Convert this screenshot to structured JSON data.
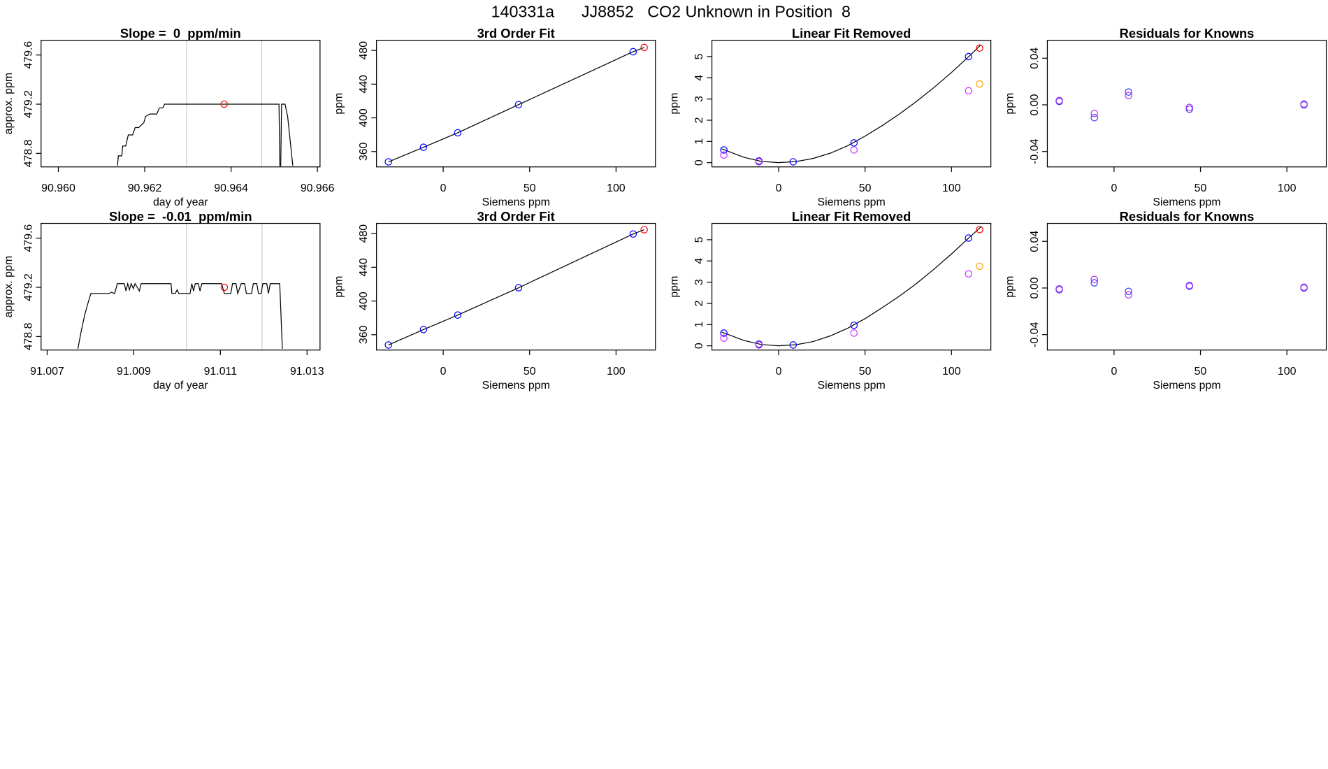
{
  "title": "140331a      JJ8852   CO2 Unknown in Position  8",
  "chart_data": [
    {
      "type": "line",
      "title": "Slope =  0  ppm/min",
      "xlabel": "day of year",
      "ylabel": "approx. ppm",
      "xlim": [
        90.9596,
        90.96606
      ],
      "ylim": [
        478.69,
        479.72
      ],
      "xticks": [
        {
          "value": 90.96,
          "label": "90.960"
        },
        90.962,
        90.964,
        90.966
      ],
      "yticks": [
        478.8,
        479.2,
        479.6
      ],
      "vlines": [
        90.96297,
        90.96471
      ],
      "vline_color": "#cccccc",
      "series": [
        {
          "mode": "line",
          "color": "#000000",
          "x": [
            90.96137,
            90.96139,
            90.96147,
            90.96149,
            90.96156,
            90.9616,
            90.96162,
            90.96172,
            90.96178,
            90.96186,
            90.96198,
            90.96202,
            90.96212,
            90.96228,
            90.96234,
            90.96242,
            90.96246,
            90.96511,
            90.96513,
            90.96515,
            90.96517,
            90.96525,
            90.96531,
            90.96537,
            90.96543
          ],
          "values": [
            478.7,
            478.78,
            478.78,
            478.86,
            478.86,
            478.92,
            478.95,
            478.95,
            479.01,
            479.01,
            479.05,
            479.1,
            479.12,
            479.12,
            479.17,
            479.17,
            479.2,
            479.2,
            478.7,
            478.7,
            479.2,
            479.2,
            479.1,
            478.9,
            478.7
          ]
        },
        {
          "mode": "points",
          "color": "#ff0000",
          "x": [
            90.96384
          ],
          "values": [
            479.2
          ]
        }
      ]
    },
    {
      "type": "scatter",
      "title": "3rd Order Fit",
      "xlabel": "Siemens ppm",
      "ylabel": "ppm",
      "xlim": [
        -38.6,
        122.8
      ],
      "ylim": [
        341.8,
        492.1
      ],
      "xticks": [
        0,
        50,
        100
      ],
      "yticks": [
        360,
        400,
        440,
        480
      ],
      "series": [
        {
          "mode": "line",
          "color": "#000000",
          "x": [
            -31.7,
            -11.4,
            8.4,
            43.6,
            109.9,
            116.3
          ],
          "values": [
            347.8,
            365.1,
            382.3,
            415.7,
            478.5,
            483.5
          ]
        },
        {
          "mode": "points",
          "color": "#0000ff",
          "x": [
            -31.7,
            -11.4,
            8.4,
            43.6,
            109.9
          ],
          "values": [
            347.8,
            365.1,
            382.3,
            415.7,
            478.5
          ]
        },
        {
          "mode": "points",
          "color": "#ff0000",
          "x": [
            116.3
          ],
          "values": [
            483.5
          ]
        }
      ]
    },
    {
      "type": "scatter",
      "title": "Linear Fit Removed",
      "xlabel": "Siemens ppm",
      "ylabel": "ppm",
      "xlim": [
        -38.6,
        122.8
      ],
      "ylim": [
        -0.2,
        5.77
      ],
      "xticks": [
        0,
        50,
        100
      ],
      "yticks": [
        0,
        1,
        2,
        3,
        4,
        5
      ],
      "series": [
        {
          "mode": "line",
          "color": "#000000",
          "x": [
            -33,
            -20,
            -10,
            0,
            10,
            20,
            30,
            40,
            50,
            60,
            70,
            80,
            90,
            100,
            110,
            117
          ],
          "values": [
            0.65,
            0.25,
            0.06,
            0.0,
            0.05,
            0.2,
            0.45,
            0.8,
            1.25,
            1.75,
            2.3,
            2.9,
            3.55,
            4.25,
            5.0,
            5.55
          ]
        },
        {
          "mode": "points",
          "color": "#0000ff",
          "x": [
            -31.7,
            -11.4,
            8.4,
            43.6,
            109.9
          ],
          "values": [
            0.6,
            0.08,
            0.04,
            0.93,
            5.0
          ]
        },
        {
          "mode": "points",
          "color": "#ff0000",
          "x": [
            116.3
          ],
          "values": [
            5.4
          ]
        },
        {
          "mode": "points",
          "color": "#cc33ff",
          "x": [
            -31.7,
            -11.4,
            43.6,
            109.9
          ],
          "values": [
            0.36,
            0.04,
            0.6,
            3.39
          ]
        },
        {
          "mode": "points",
          "color": "#ffa500",
          "x": [
            116.3
          ],
          "values": [
            3.71
          ]
        }
      ]
    },
    {
      "type": "scatter",
      "title": "Residuals for Knowns",
      "xlabel": "Siemens ppm",
      "ylabel": "ppm",
      "xlim": [
        -38.6,
        122.8
      ],
      "ylim": [
        -0.0532,
        0.0554
      ],
      "xticks": [
        0,
        50,
        100
      ],
      "yticks": [
        -0.04,
        {
          "value": 0,
          "label": "0.00"
        },
        0.04
      ],
      "series": [
        {
          "mode": "points",
          "color": "#3a3aff",
          "x": [
            -31.7,
            -11.4,
            8.4,
            43.6,
            109.9
          ],
          "values": [
            0.0029,
            -0.011,
            0.011,
            -0.0037,
            0.0
          ]
        },
        {
          "mode": "points",
          "color": "#b030f0",
          "x": [
            -31.7,
            -11.4,
            8.4,
            43.6,
            109.9
          ],
          "values": [
            0.0037,
            -0.0073,
            0.008,
            -0.0022,
            0.0007
          ]
        }
      ]
    },
    {
      "type": "line",
      "title": "Slope =  -0.01  ppm/min",
      "xlabel": "day of year",
      "ylabel": "approx. ppm",
      "xlim": [
        91.00686,
        91.0133
      ],
      "ylim": [
        478.69,
        479.72
      ],
      "xticks": [
        91.007,
        91.009,
        91.011,
        91.013
      ],
      "yticks": [
        478.8,
        479.2,
        479.6
      ],
      "vlines": [
        91.01022,
        91.01196
      ],
      "vline_color": "#cccccc",
      "series": [
        {
          "mode": "line",
          "color": "#000000",
          "x": [
            91.00771,
            91.00779,
            91.00787,
            91.00795,
            91.00801,
            91.00844,
            91.00848,
            91.00856,
            91.00862,
            91.00878,
            91.00882,
            91.00886,
            91.0089,
            91.00894,
            91.00899,
            91.00903,
            91.00913,
            91.00917,
            91.00986,
            91.00988,
            91.00996,
            91.01,
            91.01004,
            91.0103,
            91.01034,
            91.01038,
            91.01042,
            91.01049,
            91.01053,
            91.01057,
            91.01103,
            91.01109,
            91.01124,
            91.01128,
            91.01136,
            91.0114,
            91.01148,
            91.01156,
            91.0116,
            91.01172,
            91.01176,
            91.01184,
            91.01188,
            91.01194,
            91.01198,
            91.01207,
            91.01211,
            91.01215,
            91.01237,
            91.01243
          ],
          "values": [
            478.7,
            478.85,
            478.98,
            479.08,
            479.15,
            479.15,
            479.16,
            479.15,
            479.23,
            479.23,
            479.17,
            479.23,
            479.18,
            479.23,
            479.19,
            479.23,
            479.17,
            479.23,
            479.23,
            479.15,
            479.15,
            479.18,
            479.15,
            479.15,
            479.23,
            479.17,
            479.23,
            479.23,
            479.17,
            479.23,
            479.23,
            479.15,
            479.15,
            479.23,
            479.23,
            479.15,
            479.23,
            479.23,
            479.15,
            479.15,
            479.23,
            479.23,
            479.15,
            479.15,
            479.23,
            479.23,
            479.15,
            479.23,
            479.23,
            478.7
          ]
        },
        {
          "mode": "points",
          "color": "#ff0000",
          "x": [
            91.01109
          ],
          "values": [
            479.2
          ]
        }
      ]
    },
    {
      "type": "scatter",
      "title": "3rd Order Fit",
      "xlabel": "Siemens ppm",
      "ylabel": "ppm",
      "xlim": [
        -38.6,
        122.8
      ],
      "ylim": [
        341.8,
        492.1
      ],
      "xticks": [
        0,
        50,
        100
      ],
      "yticks": [
        360,
        400,
        440,
        480
      ],
      "series": [
        {
          "mode": "line",
          "color": "#000000",
          "x": [
            -31.7,
            -11.4,
            8.4,
            43.6,
            109.9,
            116.3
          ],
          "values": [
            347.8,
            366.1,
            383.3,
            415.7,
            479.5,
            484.6
          ]
        },
        {
          "mode": "points",
          "color": "#0000ff",
          "x": [
            -31.7,
            -11.4,
            8.4,
            43.6,
            109.9
          ],
          "values": [
            347.8,
            366.1,
            383.3,
            415.7,
            479.5
          ]
        },
        {
          "mode": "points",
          "color": "#ff0000",
          "x": [
            116.3
          ],
          "values": [
            484.6
          ]
        }
      ]
    },
    {
      "type": "scatter",
      "title": "Linear Fit Removed",
      "xlabel": "Siemens ppm",
      "ylabel": "ppm",
      "xlim": [
        -38.6,
        122.8
      ],
      "ylim": [
        -0.2,
        5.77
      ],
      "xticks": [
        0,
        50,
        100
      ],
      "yticks": [
        0,
        1,
        2,
        3,
        4,
        5
      ],
      "series": [
        {
          "mode": "line",
          "color": "#000000",
          "x": [
            -33,
            -20,
            -10,
            0,
            10,
            20,
            30,
            40,
            50,
            60,
            70,
            80,
            90,
            100,
            110,
            117
          ],
          "values": [
            0.65,
            0.25,
            0.06,
            0.0,
            0.05,
            0.2,
            0.47,
            0.83,
            1.28,
            1.8,
            2.35,
            2.95,
            3.62,
            4.33,
            5.08,
            5.6
          ]
        },
        {
          "mode": "points",
          "color": "#0000ff",
          "x": [
            -31.7,
            -11.4,
            8.4,
            43.6,
            109.9
          ],
          "values": [
            0.6,
            0.08,
            0.04,
            0.97,
            5.08
          ]
        },
        {
          "mode": "points",
          "color": "#ff0000",
          "x": [
            116.3
          ],
          "values": [
            5.48
          ]
        },
        {
          "mode": "points",
          "color": "#cc33ff",
          "x": [
            -31.7,
            -11.4,
            43.6,
            109.9
          ],
          "values": [
            0.36,
            0.04,
            0.6,
            3.39
          ]
        },
        {
          "mode": "points",
          "color": "#ffa500",
          "x": [
            116.3
          ],
          "values": [
            3.75
          ]
        }
      ]
    },
    {
      "type": "scatter",
      "title": "Residuals for Knowns",
      "xlabel": "Siemens ppm",
      "ylabel": "ppm",
      "xlim": [
        -38.6,
        122.8
      ],
      "ylim": [
        -0.0532,
        0.0554
      ],
      "xticks": [
        0,
        50,
        100
      ],
      "yticks": [
        -0.04,
        {
          "value": 0,
          "label": "0.00"
        },
        0.04
      ],
      "series": [
        {
          "mode": "points",
          "color": "#3a3aff",
          "x": [
            -31.7,
            -11.4,
            8.4,
            43.6,
            109.9
          ],
          "values": [
            -0.0015,
            0.0044,
            -0.0029,
            0.0015,
            0.0
          ]
        },
        {
          "mode": "points",
          "color": "#b030f0",
          "x": [
            -31.7,
            -11.4,
            8.4,
            43.6,
            109.9
          ],
          "values": [
            -0.0007,
            0.0073,
            -0.0059,
            0.0022,
            0.0007
          ]
        }
      ]
    }
  ]
}
